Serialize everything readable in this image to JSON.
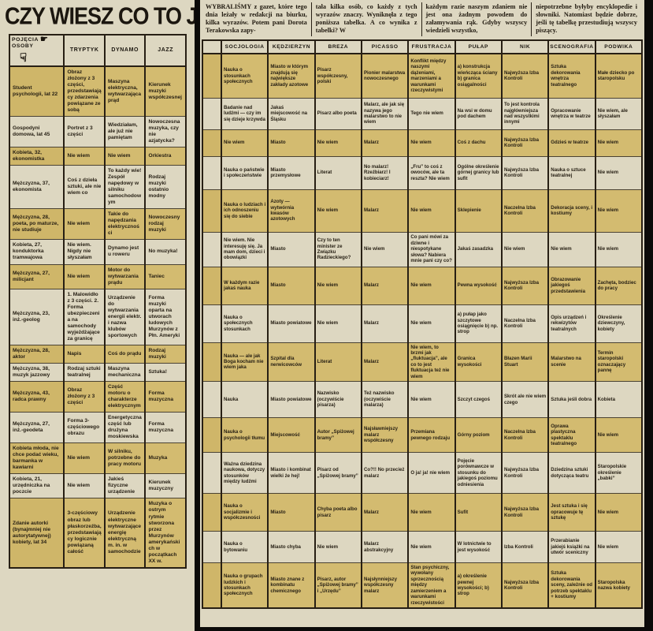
{
  "title": "CZY WIESZ CO TO JEST...",
  "intro": {
    "col1_lead": "WYBRALIŚMY",
    "col1": " z gazet, które tego dnia leżały w redakcji na biurku, kilka wyrazów. Potem pani Dorota Terakowska zapy-",
    "col2": "tała kilka osób, co każdy z tych wyrazów znaczy. Wyniknęła z tego poniższa tabelka. A co wynika z tabelki? W",
    "col3": "każdym razie naszym zdaniem nie jest ona żadnym powodem do załamywania rąk. Gdyby wszyscy wiedzieli wszystko,",
    "col4": "niepotrzebne byłyby encyklopedie i słowniki. Natomiast będzie dobrze, jeśli tę tabelkę przestudiują wszyscy piszący."
  },
  "left_table": {
    "corner_top": "POJĘCIA",
    "corner_bottom": "OSOBY",
    "pointing_hand_icon": "☛",
    "pointing_down_icon": "☟",
    "columns": [
      "TRYPTYK",
      "DYNAMO",
      "JAZZ"
    ],
    "rows": [
      {
        "person": "Student psychologii, lat 22",
        "cells": [
          "Obraz złożony z 3 części, przedstawiający zdarzenia powiązane ze sobą",
          "Maszyna elektryczna, wytwarzająca prąd",
          "Kierunek muzyki współczesnej"
        ]
      },
      {
        "person": "Gospodyni domowa, lat 45",
        "cells": [
          "Portret z 3 części",
          "Wiedziałam, ale już nie pamiętam",
          "Nowoczesna muzyka, czy nie azjatycka?"
        ]
      },
      {
        "person": "Kobieta, 32, ekonomistka",
        "cells": [
          "Nie wiem",
          "Nie wiem",
          "Orkiestra"
        ]
      },
      {
        "person": "Mężczyzna, 37, ekonomista",
        "cells": [
          "Coś z dzieła sztuki, ale nie wiem co",
          "To każdy wie! Zespół napędowy w silniku samochodowym",
          "Rodzaj muzyki ostatnio modny"
        ]
      },
      {
        "person": "Mężczyzna, 28, poeta, po maturze, nie studiuje",
        "cells": [
          "Nie wiem",
          "Takie do napędzania elektryczności",
          "Nowoczesny rodzaj muzyki"
        ]
      },
      {
        "person": "Kobieta, 27, konduktorka tramwajowa",
        "cells": [
          "Nie wiem. Nigdy nie słyszałam",
          "Dynamo jest u roweru",
          "No muzyka!"
        ]
      },
      {
        "person": "Mężczyzna, 27, milicjant",
        "cells": [
          "Nie wiem",
          "Motor do wytwarzania prądu",
          "Taniec"
        ]
      },
      {
        "person": "Mężczyzna, 23, inż.-geolog",
        "cells": [
          "1. Malowidło z 3 części. 2. Forma ubezpieczenia na samochody wyjeżdżające za granicę",
          "Urządzenie do wytwarzania energii elektr. i nazwa klubów sportowych",
          "Forma muzyki oparta na utworach ludowych Murzynów z Płn. Ameryki"
        ]
      },
      {
        "person": "Mężczyzna, 28, aktor",
        "cells": [
          "Napis",
          "Coś do prądu",
          "Rodzaj muzyki"
        ]
      },
      {
        "person": "Mężczyzna, 38, muzyk jazzowy",
        "cells": [
          "Rodzaj sztuki teatralnej",
          "Maszyna mechaniczna",
          "Sztuka!"
        ]
      },
      {
        "person": "Mężczyzna, 43, radca prawny",
        "cells": [
          "Obraz złożony z 3 części",
          "Część motoru o charakterze elektrycznym",
          "Forma muzyczna"
        ]
      },
      {
        "person": "Mężczyzna, 27, inż.-geodeta",
        "cells": [
          "Forma 3-częściowego obrazu",
          "Energetyczna część lub drużyna moskiewska",
          "Forma muzyczna"
        ]
      },
      {
        "person": "Kobieta młoda, nie chce podać wieku, barmanka w kawiarni",
        "cells": [
          "Nie wiem",
          "W silniku, potrzebne do pracy motoru",
          "Muzyka"
        ]
      },
      {
        "person": "Kobieta, 21, urzędniczka na poczcie",
        "cells": [
          "Nie wiem",
          "Jakieś fizyczne urządzenie",
          "Kierunek muzyczny"
        ]
      },
      {
        "person": "Zdanie autorki (bynajmniej nie autorytatywnej) kobiety, lat 34",
        "cells": [
          "3-częściowy obraz lub płaskorzeźba, przedstawiający logicznie powiązaną całość",
          "Urządzenie elektryczne wytwarzające energię elektryczną m. in. w samochodzie",
          "Muzyka o ostrym rytmie stworzona przez Murzynów amerykańskich w początkach XX w."
        ]
      }
    ]
  },
  "right_table": {
    "columns": [
      "SOCJOLOGIA",
      "KĘDZIE­RZYN",
      "BREZA",
      "PICASSO",
      "FRUSTRA­CJA",
      "PUŁAP",
      "NIK",
      "SCENOGRA­FIA",
      "PODWIKA"
    ],
    "rows": [
      [
        "Nauka o stosunkach społecznych",
        "Miasto w którym znajdują się największe zakłady azotowe",
        "Pisarz współczesny, polski",
        "Pionier malarstwa nowoczesnego",
        "Konflikt między naszymi dążeniami, marzeniami a warunkami rzeczywistymi",
        "a) konstrukcja wieńcząca ściany b) granica osiągalności",
        "Najwyższa Izba Kontroli",
        "Sztuka dekorowania wnętrza teatralnego",
        "Małe dziecko po staropolsku"
      ],
      [
        "Badanie nad ludźmi — czy im się dzieje krzywda",
        "Jakaś miejscowość na Śląsku",
        "Pisarz albo poeta",
        "Malarz, ale jak się nazywa jego malarstwo to nie wiem",
        "Tego nie wiem",
        "Na wsi w domu pod dachem",
        "To jest kontrola najgłówniejsza nad wszystkimi innymi",
        "Opracowanie wnętrza w teatrze",
        "Nie wiem, ale słyszałam"
      ],
      [
        "Nie wiem",
        "Miasto",
        "Nie wiem",
        "Malarz",
        "Nie wiem",
        "Coś z dachu",
        "Najwyższa Izba Kontroli",
        "Gdzieś w teatrze",
        "Nie wiem"
      ],
      [
        "Nauka o państwie i społeczeństwie",
        "Miasto przemysłowe",
        "Literat",
        "No malarz! Rzeźbiarz! I kobieciarz!",
        "„Fru” to coś z owoców, ale ta reszta? Nie wiem",
        "Ogólne określenie górnej granicy lub sufit",
        "Najwyższa Izba Kontroli",
        "Nauka o sztuce teatralnej",
        "Nie wiem"
      ],
      [
        "Nauka o ludziach i ich odnoszeniu się do siebie",
        "Azoty — wytwórnia kwasów azotowych",
        "Nie wiem",
        "Malarz",
        "Nie wiem",
        "Sklepienie",
        "Naczelna Izba Kontroli",
        "Dekoracja sceny, i kostiumy",
        "Nie wiem"
      ],
      [
        "Nie wiem. Nie interesuję się. Ja mam dom, dzieci i obowiązki",
        "Miasto",
        "Czy to ten minister ze Związku Radzieckiego?",
        "Nie wiem",
        "Co pani mówi za dziwne i niespotykane słowa? Nabiera mnie pani czy co?",
        "Jakaś zasadzka",
        "Nie wiem",
        "Nie wiem",
        "Nie wiem"
      ],
      [
        "W każdym razie jakaś nauka",
        "Miasto",
        "Nie wiem",
        "Malarz",
        "Nie wiem",
        "Pewna wysokość",
        "Najwyższa Izba Kontroli",
        "Obrazowanie jakiegoś przedstawienia",
        "Zachęta, bodziec do pracy"
      ],
      [
        "Nauka o społecznych stosunkach",
        "Miasto powiatowe",
        "Nie wiem",
        "Malarz",
        "Nie wiem",
        "a) pułap jako szczytowe osiągnięcie b) np. strop",
        "Naczelna Izba Kontroli",
        "Opis urządzeń i rekwizytów teatralnych",
        "Określenie dziewczyny, kobiety"
      ],
      [
        "Nauka — ale jak Boga kocham nie wiem jaka",
        "Szpital dla nerwicowców",
        "Literat",
        "Malarz",
        "Nie wiem, to brzmi jak „fluktuacja”, ale co to jest fluktuacja też nie wiem",
        "Granica wysokości",
        "Błazen Marii Stuart",
        "Malarstwo na scenie",
        "Termin staropolski oznaczający pannę"
      ],
      [
        "Nauka",
        "Miasto powiatowe",
        "Nazwisko (oczywiście pisarza)",
        "Też nazwisko (oczywiście malarza)",
        "Nie wiem",
        "Szczyt czegoś",
        "Skrót ale nie wiem czego",
        "Sztuka jeśli dobra",
        "Kobieta"
      ],
      [
        "Nauka o psychologii tłumu",
        "Miejscowość",
        "Autor „Spiżowej bramy”",
        "Najsławniejszy malarz współczesny",
        "Przemiana pewnego rodzaju",
        "Górny poziom",
        "Naczelna Izba Kontroli",
        "Oprawa plastyczna spektaklu teatralnego",
        "Nie wiem"
      ],
      [
        "Ważna dziedzina naukowa, dotyczy stosunków między ludźmi",
        "Miasto i kombinat wielki że hej!",
        "Pisarz od „Spiżowej bramy”",
        "Co?!! No przecież malarz",
        "O ja! ja! nie wiem",
        "Pojęcie porównawcze w stosunku do jakiegoś poziomu odniesienia",
        "Najwyższa Izba Kontroli",
        "Dziedzina sztuki dotycząca teatru",
        "Staropolskie określenie „babki”"
      ],
      [
        "Nauka o socjalizmie i współczesności",
        "Miasto",
        "Chyba poeta albo pisarz",
        "Malarz",
        "Nie wiem",
        "Sufit",
        "Najwyższa Izba Kontroli",
        "Jest sztuka i się opracowuje tę sztukę",
        "Nie wiem"
      ],
      [
        "Nauka o bytowaniu",
        "Miasto chyba",
        "Nie wiem",
        "Malarz abstrakcyjny",
        "Nie wiem",
        "W lotnictwie to jest wysokość",
        "Izba Kontroli",
        "Przerabianie jakiejś książki na utwór sceniczny",
        "Nie wiem"
      ],
      [
        "Nauka o grupach ludzkich i stosunkach społecznych",
        "Miasto znane z kombinatu chemicznego",
        "Pisarz, autor „Spiżowej bramy” i „Urzędu”",
        "Najsłynniejszy współczesny malarz",
        "Stan psychiczny, wywołany sprzecznością między zamierzeniem a warunkami rzeczywistości",
        "a) określenie pewnej wysokości; b) strop",
        "Najwyższa Izba Kontroli",
        "Sztuka dekorowania sceny, zależnie od potrzeb spektaklu + kostiumy",
        "Staropolska nazwa kobiety"
      ]
    ]
  },
  "colors": {
    "paper": "#ddd7c1",
    "band_tan": "#d3bb70",
    "ink": "#1b160f",
    "border": "#271f14",
    "background": "#0b0a09"
  }
}
